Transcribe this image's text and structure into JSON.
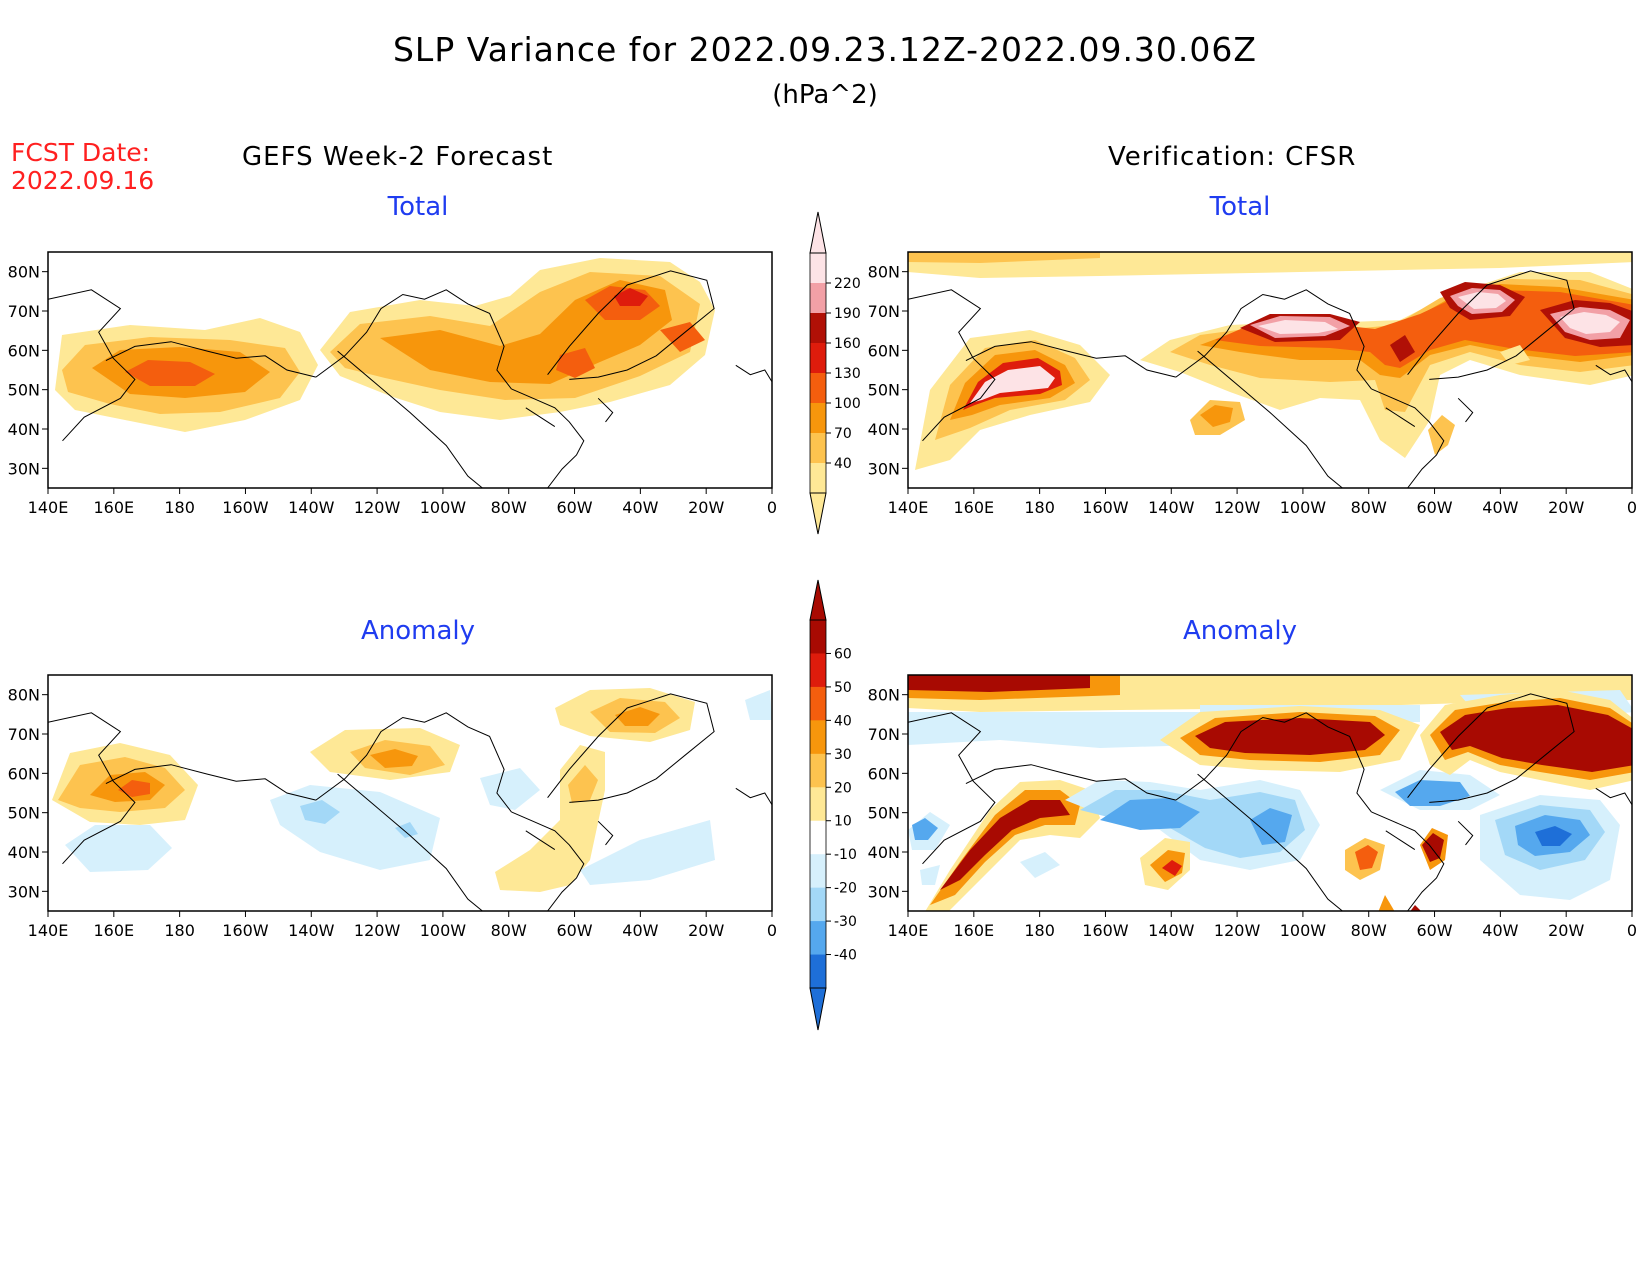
{
  "header": {
    "title": "SLP Variance for 2022.09.23.12Z-2022.09.30.06Z",
    "units": "(hPa^2)",
    "fcst_label": "FCST Date:",
    "fcst_date": "2022.09.16"
  },
  "columns": {
    "left": "GEFS Week-2 Forecast",
    "right": "Verification: CFSR"
  },
  "panels": [
    {
      "id": "forecast-total",
      "title": "Total"
    },
    {
      "id": "verification-total",
      "title": "Total"
    },
    {
      "id": "forecast-anomaly",
      "title": "Anomaly"
    },
    {
      "id": "verification-anomaly",
      "title": "Anomaly"
    }
  ],
  "axes": {
    "lon_labels": [
      "140E",
      "160E",
      "180",
      "160W",
      "140W",
      "120W",
      "100W",
      "80W",
      "60W",
      "40W",
      "20W",
      "0"
    ],
    "lat_labels": [
      "80N",
      "70N",
      "60N",
      "50N",
      "40N",
      "30N"
    ],
    "lat_values": [
      80,
      70,
      60,
      50,
      40,
      30
    ],
    "lat_range": [
      25,
      85
    ],
    "lon_range_east_deg": [
      140,
      360
    ]
  },
  "colorbars": {
    "total": {
      "levels": [
        "40",
        "70",
        "100",
        "130",
        "160",
        "190",
        "220"
      ],
      "colors": [
        "#fee896",
        "#fdc34f",
        "#f7960c",
        "#f45e0e",
        "#de1c0c",
        "#b01006",
        "#f2a0a6",
        "#fde3e6"
      ]
    },
    "anomaly": {
      "levels": [
        "60",
        "50",
        "40",
        "30",
        "20",
        "10",
        "-10",
        "-20",
        "-30",
        "-40"
      ],
      "colors": [
        "#a80a02",
        "#de1c0c",
        "#f45e0e",
        "#f7960c",
        "#fdc34f",
        "#fee896",
        "#ffffff",
        "#d6f0fc",
        "#a3d8f7",
        "#55a8ee",
        "#1e6fd8"
      ]
    }
  },
  "colors": {
    "fcst_date": "#ff2020",
    "panel_title": "#1f3cf0"
  }
}
